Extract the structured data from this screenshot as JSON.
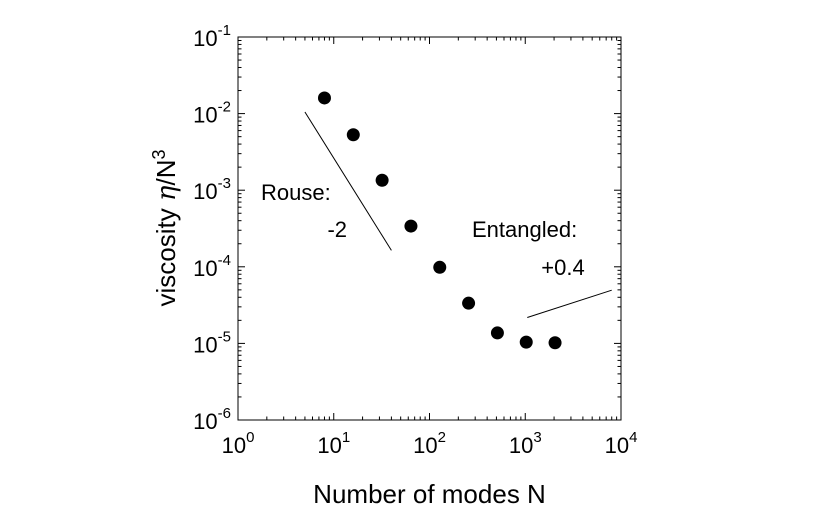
{
  "chart_data": {
    "type": "scatter",
    "title": "",
    "xlabel": "Number of modes N",
    "ylabel": {
      "main": "viscosity ",
      "eta": "η",
      "slash": "/N",
      "sup": "3"
    },
    "xscale": "log",
    "yscale": "log",
    "xlim": [
      1,
      10000
    ],
    "ylim": [
      1e-06,
      0.1
    ],
    "grid": false,
    "legend": "none",
    "x_ticks": [
      {
        "base": "10",
        "exp": "0",
        "value": 1
      },
      {
        "base": "10",
        "exp": "1",
        "value": 10
      },
      {
        "base": "10",
        "exp": "2",
        "value": 100
      },
      {
        "base": "10",
        "exp": "3",
        "value": 1000
      },
      {
        "base": "10",
        "exp": "4",
        "value": 10000
      }
    ],
    "y_ticks": [
      {
        "base": "10",
        "exp": "-6",
        "value": 1e-06
      },
      {
        "base": "10",
        "exp": "-5",
        "value": 1e-05
      },
      {
        "base": "10",
        "exp": "-4",
        "value": 0.0001
      },
      {
        "base": "10",
        "exp": "-3",
        "value": 0.001
      },
      {
        "base": "10",
        "exp": "-2",
        "value": 0.01
      },
      {
        "base": "10",
        "exp": "-1",
        "value": 0.1
      }
    ],
    "series": [
      {
        "x": [
          8,
          16,
          32,
          64,
          128,
          256,
          512,
          1024,
          2048
        ],
        "y": [
          0.016,
          0.0053,
          0.00135,
          0.00034,
          9.85e-05,
          3.35e-05,
          1.37e-05,
          1.04e-05,
          1.02e-05
        ]
      }
    ],
    "reference_lines": [
      {
        "slope_label_line1": "Rouse:",
        "slope_label_line2": "-2",
        "x": [
          5,
          40
        ],
        "y": [
          0.0105,
          0.000164
        ]
      },
      {
        "slope_label_line1": "Entangled:",
        "slope_label_line2": "+0.4",
        "x": [
          1050,
          8000
        ],
        "y": [
          2.18e-05,
          4.95e-05
        ]
      }
    ],
    "colors": {
      "markers": "#000000",
      "axes": "#000000",
      "background": "#ffffff"
    }
  }
}
